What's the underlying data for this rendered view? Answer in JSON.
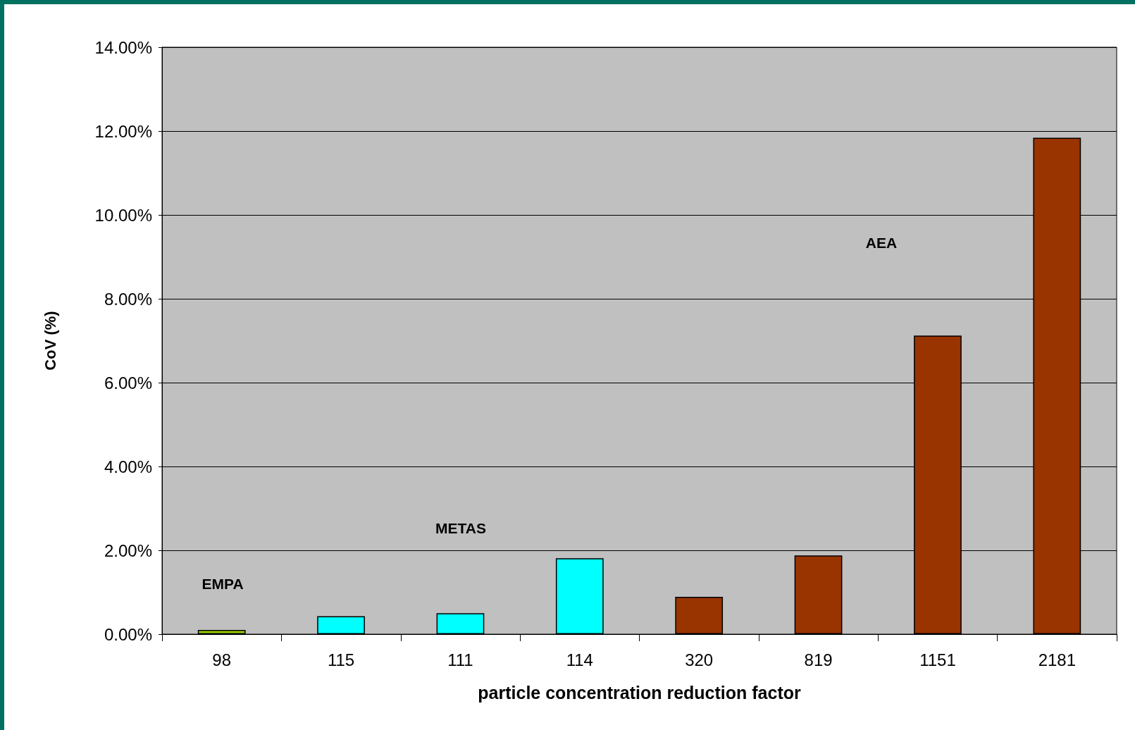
{
  "chart_data": {
    "type": "bar",
    "xlabel": "particle concentration reduction factor",
    "ylabel": "CoV (%)",
    "categories": [
      "98",
      "115",
      "111",
      "114",
      "320",
      "819",
      "1151",
      "2181"
    ],
    "values": [
      0.1,
      0.43,
      0.5,
      1.81,
      0.89,
      1.88,
      7.12,
      11.84
    ],
    "colors": [
      "#99cc00",
      "#00ffff",
      "#00ffff",
      "#00ffff",
      "#993300",
      "#993300",
      "#993300",
      "#993300"
    ],
    "ylim": [
      0,
      14
    ],
    "yticks": [
      {
        "value": 0,
        "label": "0.00%"
      },
      {
        "value": 2,
        "label": "2.00%"
      },
      {
        "value": 4,
        "label": "4.00%"
      },
      {
        "value": 6,
        "label": "6.00%"
      },
      {
        "value": 8,
        "label": "8.00%"
      },
      {
        "value": 10,
        "label": "10.00%"
      },
      {
        "value": 12,
        "label": "12.00%"
      },
      {
        "value": 14,
        "label": "14.00%"
      }
    ],
    "grid": "y",
    "annotations": [
      "EMPA",
      "METAS",
      "AEA"
    ]
  }
}
